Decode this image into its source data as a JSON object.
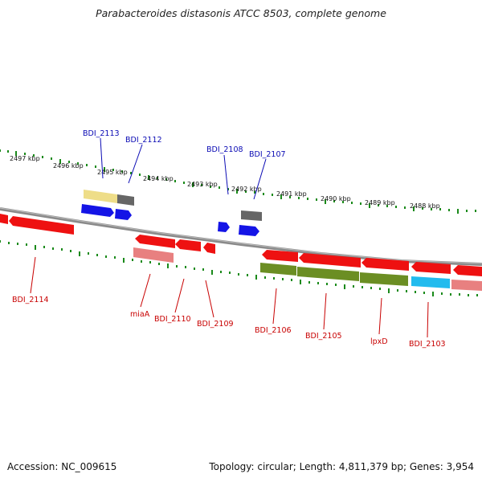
{
  "title": "Parabacteroides distasonis ATCC 8503, complete genome",
  "accession_text": "Accession: NC_009615",
  "summary_text": "Topology: circular; Length: 4,811,379 bp; Genes: 3,954",
  "colors": {
    "backbone": "#8a8a8a",
    "tick": "#1a8a1a",
    "forward_label": "#0a0ab4",
    "reverse_label": "#c80000",
    "cds_red": "#ee1111",
    "cds_pink": "#e88080",
    "cds_blue": "#1414e6",
    "cds_yellow": "#eedd88",
    "cds_gray": "#666666",
    "cds_olive": "#6b8e23",
    "cds_cyan": "#22bbee"
  },
  "scale_ticks": [
    "2497 kbp",
    "2496 kbp",
    "2495 kbp",
    "2494 kbp",
    "2493 kbp",
    "2492 kbp",
    "2491 kbp",
    "2490 kbp",
    "2489 kbp",
    "2488 kbp"
  ],
  "forward_labels": [
    "BDI_2113",
    "BDI_2112",
    "BDI_2108",
    "BDI_2107"
  ],
  "reverse_labels": [
    "BDI_2114",
    "miaA",
    "BDI_2110",
    "BDI_2109",
    "BDI_2106",
    "BDI_2105",
    "lpxD",
    "BDI_2103"
  ],
  "features": [
    {
      "strand": "forward",
      "ring": "outer",
      "color": "cds_yellow",
      "start_kbp": 2495.85,
      "end_kbp": 2495.05
    },
    {
      "strand": "forward",
      "ring": "outer",
      "color": "cds_gray",
      "start_kbp": 2495.05,
      "end_kbp": 2494.72
    },
    {
      "strand": "forward",
      "ring": "inner",
      "color": "cds_blue",
      "start_kbp": 2495.85,
      "end_kbp": 2495.05
    },
    {
      "strand": "forward",
      "ring": "inner",
      "color": "cds_blue",
      "start_kbp": 2495.0,
      "end_kbp": 2494.62
    },
    {
      "strand": "forward",
      "ring": "inner",
      "color": "cds_blue",
      "start_kbp": 2492.95,
      "end_kbp": 2492.72
    },
    {
      "strand": "forward",
      "ring": "outer",
      "color": "cds_gray",
      "start_kbp": 2492.45,
      "end_kbp": 2491.95
    },
    {
      "strand": "forward",
      "ring": "inner",
      "color": "cds_blue",
      "start_kbp": 2492.45,
      "end_kbp": 2491.95
    },
    {
      "strand": "reverse",
      "ring": "inner",
      "color": "cds_red",
      "start_kbp": 2497.7,
      "end_kbp": 2497.45
    },
    {
      "strand": "reverse",
      "ring": "inner",
      "color": "cds_red",
      "start_kbp": 2497.4,
      "end_kbp": 2496.0
    },
    {
      "strand": "reverse",
      "ring": "inner",
      "color": "cds_red",
      "start_kbp": 2494.75,
      "end_kbp": 2493.85
    },
    {
      "strand": "reverse",
      "ring": "outer",
      "color": "cds_pink",
      "start_kbp": 2494.75,
      "end_kbp": 2493.85
    },
    {
      "strand": "reverse",
      "ring": "inner",
      "color": "cds_red",
      "start_kbp": 2493.82,
      "end_kbp": 2493.25
    },
    {
      "strand": "reverse",
      "ring": "inner",
      "color": "cds_red",
      "start_kbp": 2493.2,
      "end_kbp": 2492.95
    },
    {
      "strand": "reverse",
      "ring": "inner",
      "color": "cds_red",
      "start_kbp": 2491.25,
      "end_kbp": 2490.45
    },
    {
      "strand": "reverse",
      "ring": "outer",
      "color": "cds_olive",
      "start_kbp": 2491.25,
      "end_kbp": 2490.45
    },
    {
      "strand": "reverse",
      "ring": "inner",
      "color": "cds_red",
      "start_kbp": 2490.4,
      "end_kbp": 2488.95
    },
    {
      "strand": "reverse",
      "ring": "outer",
      "color": "cds_olive",
      "start_kbp": 2490.4,
      "end_kbp": 2488.95
    },
    {
      "strand": "reverse",
      "ring": "inner",
      "color": "cds_red",
      "start_kbp": 2488.9,
      "end_kbp": 2487.8
    },
    {
      "strand": "reverse",
      "ring": "outer",
      "color": "cds_olive",
      "start_kbp": 2488.9,
      "end_kbp": 2487.8
    },
    {
      "strand": "reverse",
      "ring": "inner",
      "color": "cds_red",
      "start_kbp": 2487.72,
      "end_kbp": 2486.9
    },
    {
      "strand": "reverse",
      "ring": "outer",
      "color": "cds_cyan",
      "start_kbp": 2487.72,
      "end_kbp": 2486.9
    },
    {
      "strand": "reverse",
      "ring": "inner",
      "color": "cds_red",
      "start_kbp": 2486.85,
      "end_kbp": 2485.9
    },
    {
      "strand": "reverse",
      "ring": "outer",
      "color": "cds_pink",
      "start_kbp": 2486.85,
      "end_kbp": 2485.9
    }
  ]
}
